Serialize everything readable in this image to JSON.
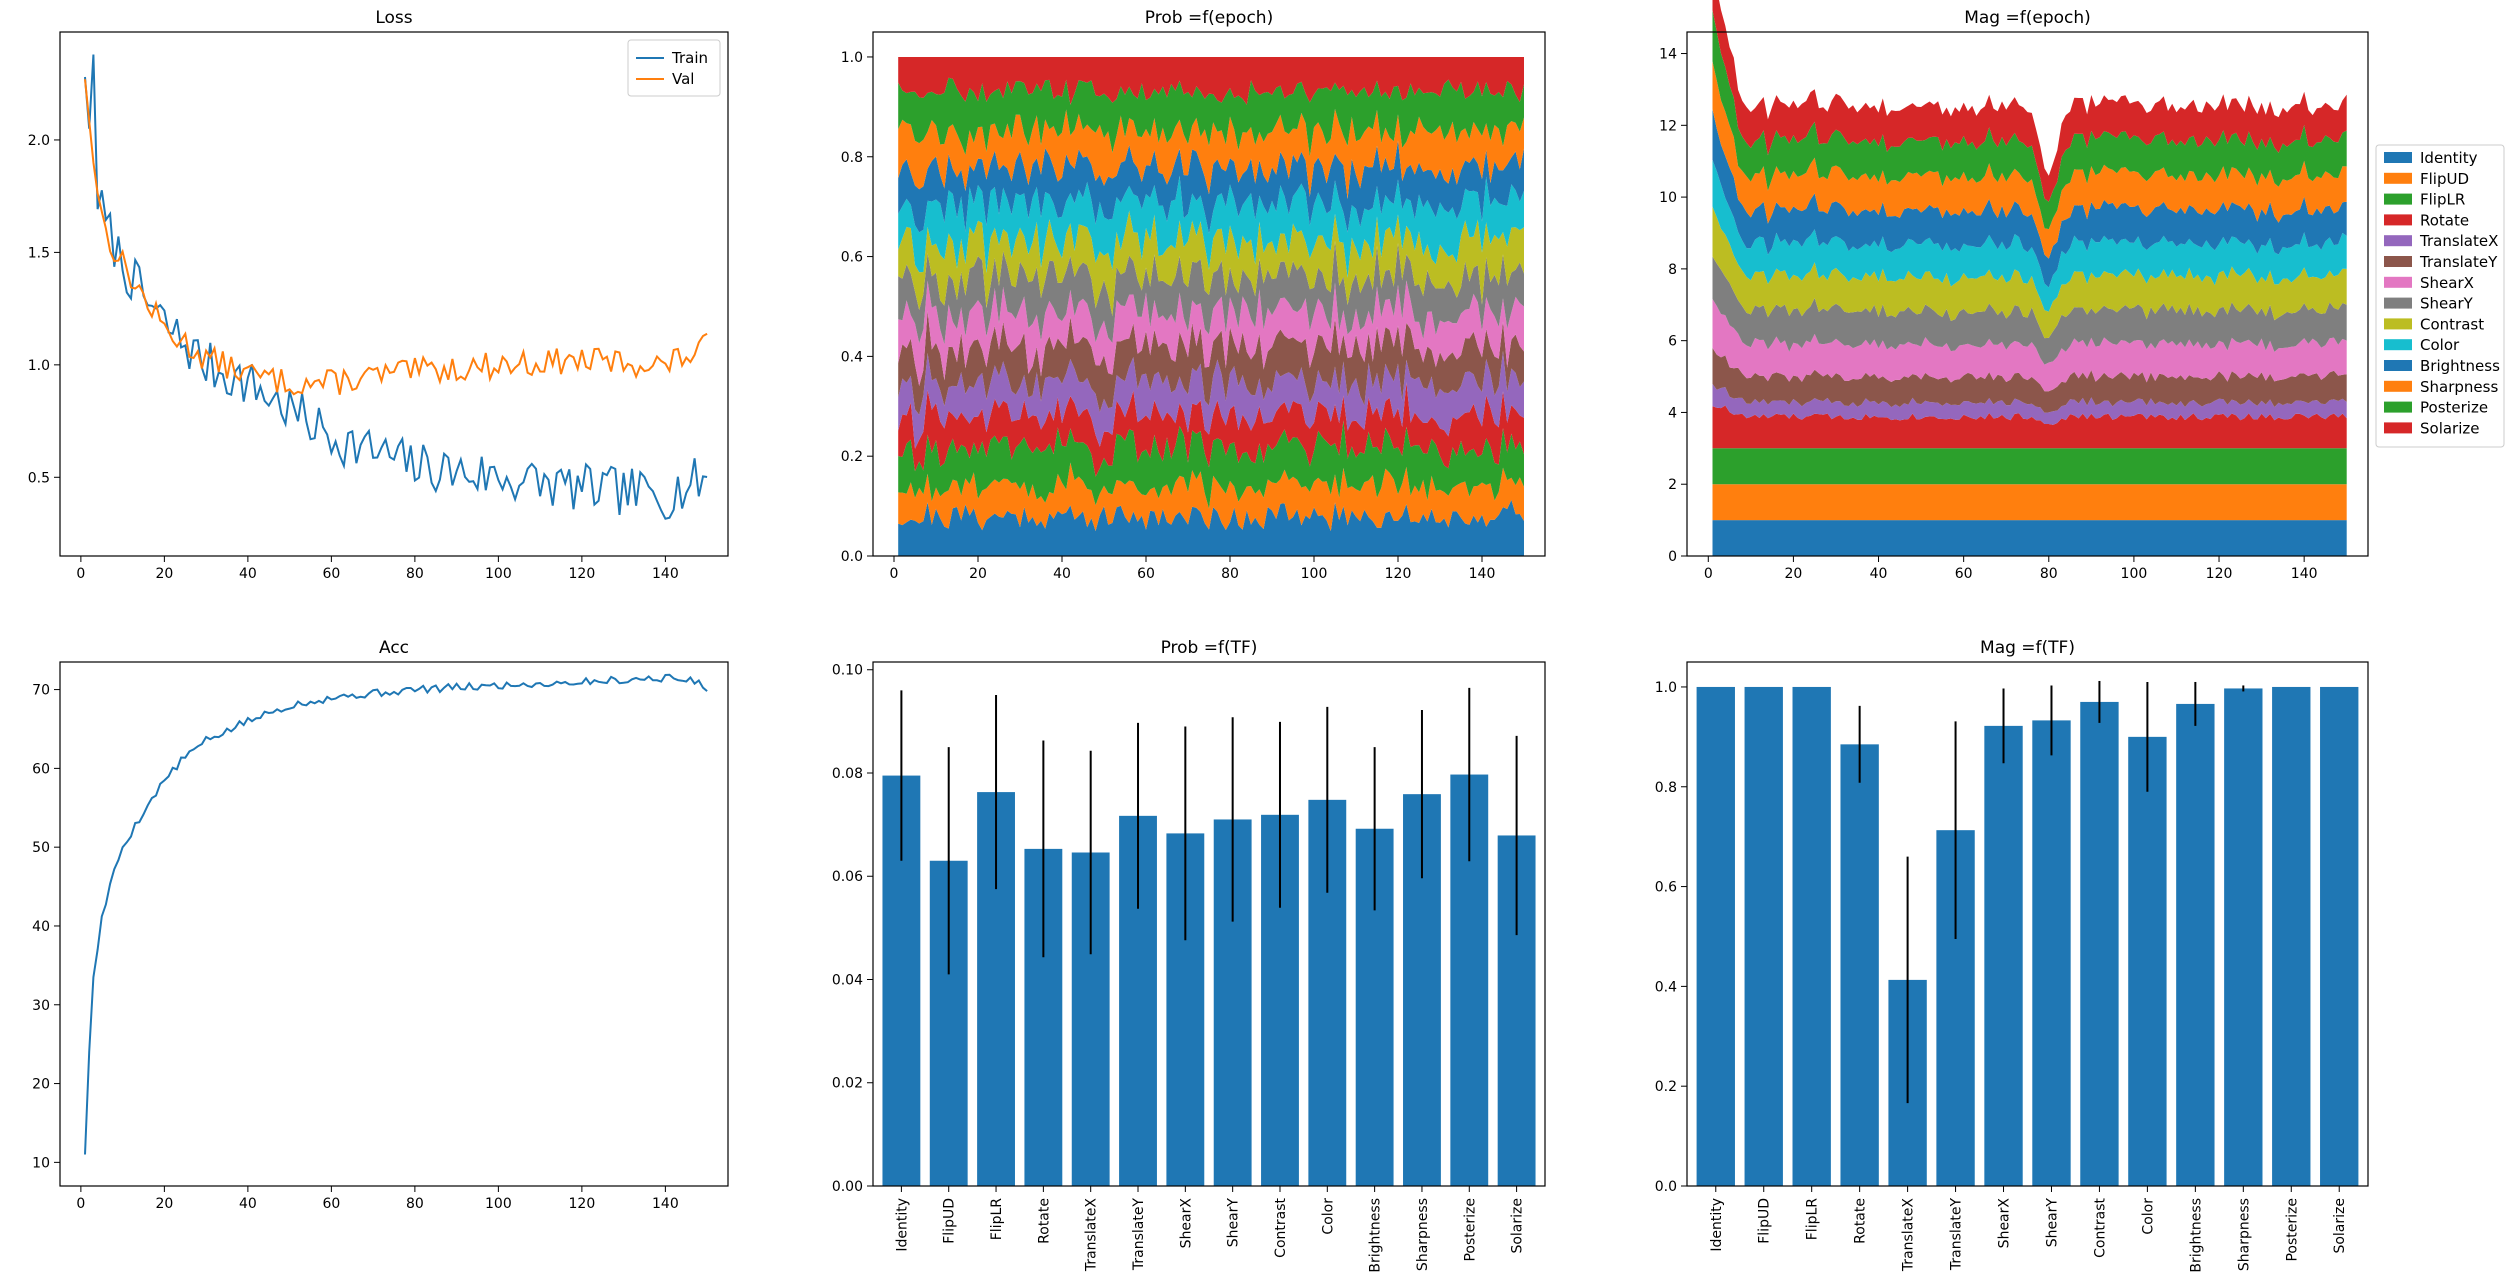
{
  "chart_data": [
    {
      "id": "loss",
      "type": "line",
      "title": "Loss",
      "xlim": [
        -5,
        155
      ],
      "ylim": [
        0.15,
        2.48
      ],
      "xticks": [
        0,
        20,
        40,
        60,
        80,
        100,
        120,
        140
      ],
      "yticks": [
        0.5,
        1.0,
        1.5,
        2.0
      ],
      "ytick_format": 1,
      "legend": "top-right",
      "series": [
        {
          "name": "Train",
          "color": "#1f77b4",
          "anchors": [
            [
              1,
              2.28
            ],
            [
              2,
              2.05
            ],
            [
              3,
              2.38
            ],
            [
              4,
              1.75
            ],
            [
              6,
              1.62
            ],
            [
              10,
              1.45
            ],
            [
              15,
              1.3
            ],
            [
              20,
              1.18
            ],
            [
              30,
              1.0
            ],
            [
              40,
              0.92
            ],
            [
              50,
              0.8
            ],
            [
              60,
              0.68
            ],
            [
              80,
              0.55
            ],
            [
              100,
              0.5
            ],
            [
              120,
              0.45
            ],
            [
              140,
              0.42
            ],
            [
              150,
              0.5
            ]
          ],
          "noise": 0.11,
          "seed": 7
        },
        {
          "name": "Val",
          "color": "#ff7f0e",
          "anchors": [
            [
              1,
              2.27
            ],
            [
              3,
              1.9
            ],
            [
              6,
              1.58
            ],
            [
              10,
              1.45
            ],
            [
              15,
              1.3
            ],
            [
              20,
              1.16
            ],
            [
              30,
              1.03
            ],
            [
              40,
              0.96
            ],
            [
              50,
              0.92
            ],
            [
              60,
              0.92
            ],
            [
              70,
              0.95
            ],
            [
              80,
              0.97
            ],
            [
              100,
              1.0
            ],
            [
              120,
              1.02
            ],
            [
              140,
              1.0
            ],
            [
              150,
              1.08
            ]
          ],
          "noise": 0.06,
          "seed": 13
        }
      ]
    },
    {
      "id": "prob_epoch",
      "type": "area",
      "title": "Prob =f(epoch)",
      "xlim": [
        -5,
        155
      ],
      "ylim": [
        0.0,
        1.05
      ],
      "xticks": [
        0,
        20,
        40,
        60,
        80,
        100,
        120,
        140
      ],
      "yticks": [
        0.0,
        0.2,
        0.4,
        0.6,
        0.8,
        1.0
      ],
      "ytick_format": 1,
      "x_range": [
        1,
        150
      ],
      "normalize": true,
      "noise": 0.35,
      "seed": 21,
      "series": [
        {
          "name": "Identity",
          "color": "#1f77b4",
          "value": 0.0795
        },
        {
          "name": "FlipUD",
          "color": "#ff7f0e",
          "value": 0.063
        },
        {
          "name": "FlipLR",
          "color": "#2ca02c",
          "value": 0.0763
        },
        {
          "name": "Rotate",
          "color": "#d62728",
          "value": 0.0653
        },
        {
          "name": "TranslateX",
          "color": "#9467bd",
          "value": 0.0646
        },
        {
          "name": "TranslateY",
          "color": "#8c564b",
          "value": 0.0717
        },
        {
          "name": "ShearX",
          "color": "#e377c2",
          "value": 0.0683
        },
        {
          "name": "ShearY",
          "color": "#7f7f7f",
          "value": 0.071
        },
        {
          "name": "Contrast",
          "color": "#bcbd22",
          "value": 0.0719
        },
        {
          "name": "Color",
          "color": "#17becf",
          "value": 0.0748
        },
        {
          "name": "Brightness",
          "color": "#1f77b4",
          "value": 0.0692
        },
        {
          "name": "Sharpness",
          "color": "#ff7f0e",
          "value": 0.0759
        },
        {
          "name": "Posterize",
          "color": "#2ca02c",
          "value": 0.0797
        },
        {
          "name": "Solarize",
          "color": "#d62728",
          "value": 0.0679
        }
      ]
    },
    {
      "id": "mag_epoch",
      "type": "area",
      "title": "Mag =f(epoch)",
      "xlim": [
        -5,
        155
      ],
      "ylim": [
        0,
        14.6
      ],
      "xticks": [
        0,
        20,
        40,
        60,
        80,
        100,
        120,
        140
      ],
      "yticks": [
        0,
        2,
        4,
        6,
        8,
        10,
        12,
        14
      ],
      "ytick_format": 0,
      "x_range": [
        1,
        150
      ],
      "normalize": false,
      "noise": 0.12,
      "seed": 33,
      "dip_at": 80,
      "legend": "outside-right",
      "series": [
        {
          "name": "Identity",
          "color": "#1f77b4",
          "value": 1.0,
          "fixed": true
        },
        {
          "name": "FlipUD",
          "color": "#ff7f0e",
          "value": 1.0,
          "fixed": true
        },
        {
          "name": "FlipLR",
          "color": "#2ca02c",
          "value": 1.0,
          "fixed": true
        },
        {
          "name": "Rotate",
          "color": "#d62728",
          "value": 0.88
        },
        {
          "name": "TranslateX",
          "color": "#9467bd",
          "value": 0.41
        },
        {
          "name": "TranslateY",
          "color": "#8c564b",
          "value": 0.71
        },
        {
          "name": "ShearX",
          "color": "#e377c2",
          "value": 0.92
        },
        {
          "name": "ShearY",
          "color": "#7f7f7f",
          "value": 0.93
        },
        {
          "name": "Contrast",
          "color": "#bcbd22",
          "value": 0.97
        },
        {
          "name": "Color",
          "color": "#17becf",
          "value": 0.9
        },
        {
          "name": "Brightness",
          "color": "#1f77b4",
          "value": 0.966
        },
        {
          "name": "Sharpness",
          "color": "#ff7f0e",
          "value": 0.997
        },
        {
          "name": "Posterize",
          "color": "#2ca02c",
          "value": 1.0
        },
        {
          "name": "Solarize",
          "color": "#d62728",
          "value": 1.0
        }
      ]
    },
    {
      "id": "acc",
      "type": "line",
      "title": "Acc",
      "xlim": [
        -5,
        155
      ],
      "ylim": [
        7,
        73.5
      ],
      "xticks": [
        0,
        20,
        40,
        60,
        80,
        100,
        120,
        140
      ],
      "yticks": [
        10,
        20,
        30,
        40,
        50,
        60,
        70
      ],
      "ytick_format": 0,
      "series": [
        {
          "name": "",
          "color": "#1f77b4",
          "anchors": [
            [
              1,
              11
            ],
            [
              2,
              24
            ],
            [
              3,
              33.5
            ],
            [
              5,
              41
            ],
            [
              8,
              47
            ],
            [
              10,
              50
            ],
            [
              15,
              54.5
            ],
            [
              20,
              58.5
            ],
            [
              25,
              61.5
            ],
            [
              30,
              63.5
            ],
            [
              40,
              66
            ],
            [
              50,
              68
            ],
            [
              60,
              69
            ],
            [
              80,
              70
            ],
            [
              100,
              70.5
            ],
            [
              120,
              71
            ],
            [
              140,
              71.5
            ],
            [
              148,
              71
            ],
            [
              150,
              70.3
            ]
          ],
          "noise": 0.5,
          "seed": 5
        }
      ]
    },
    {
      "id": "prob_tf",
      "type": "bar",
      "title": "Prob =f(TF)",
      "ylim": [
        0.0,
        0.1015
      ],
      "yticks": [
        0.0,
        0.02,
        0.04,
        0.06,
        0.08,
        0.1
      ],
      "ytick_format": 2,
      "bar_color": "#1f77b4",
      "categories": [
        "Identity",
        "FlipUD",
        "FlipLR",
        "Rotate",
        "TranslateX",
        "TranslateY",
        "ShearX",
        "ShearY",
        "Contrast",
        "Color",
        "Brightness",
        "Sharpness",
        "Posterize",
        "Solarize"
      ],
      "values": [
        0.0795,
        0.063,
        0.0763,
        0.0653,
        0.0646,
        0.0717,
        0.0683,
        0.071,
        0.0719,
        0.0748,
        0.0692,
        0.0759,
        0.0797,
        0.0679
      ],
      "errors": [
        0.0165,
        0.022,
        0.0188,
        0.021,
        0.0197,
        0.018,
        0.0207,
        0.0198,
        0.018,
        0.018,
        0.0158,
        0.0163,
        0.0168,
        0.0193
      ]
    },
    {
      "id": "mag_tf",
      "type": "bar",
      "title": "Mag =f(TF)",
      "ylim": [
        0.0,
        1.05
      ],
      "yticks": [
        0.0,
        0.2,
        0.4,
        0.6,
        0.8,
        1.0
      ],
      "ytick_format": 1,
      "bar_color": "#1f77b4",
      "categories": [
        "Identity",
        "FlipUD",
        "FlipLR",
        "Rotate",
        "TranslateX",
        "TranslateY",
        "ShearX",
        "ShearY",
        "Contrast",
        "Color",
        "Brightness",
        "Sharpness",
        "Posterize",
        "Solarize"
      ],
      "values": [
        1.0,
        1.0,
        1.0,
        0.885,
        0.413,
        0.713,
        0.922,
        0.933,
        0.97,
        0.9,
        0.966,
        0.997,
        1.0,
        1.0
      ],
      "errors": [
        0.0,
        0.0,
        0.0,
        0.077,
        0.247,
        0.218,
        0.075,
        0.07,
        0.042,
        0.11,
        0.044,
        0.006,
        0.0,
        0.0
      ]
    }
  ]
}
